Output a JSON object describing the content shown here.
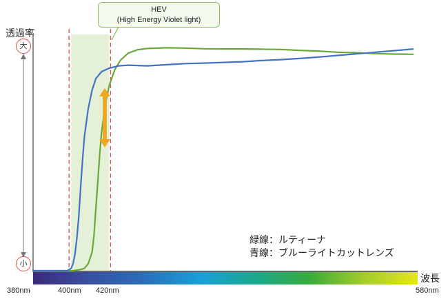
{
  "chart_data": {
    "type": "line",
    "ylabel": "透過率",
    "y_scale_labels": {
      "high": "大",
      "low": "小"
    },
    "xlabel": "波長",
    "xlim": [
      380,
      580
    ],
    "ylim": [
      0,
      100
    ],
    "x_tick_labels": [
      "380nm",
      "400nm",
      "420nm",
      "580nm"
    ],
    "x_ticks": [
      380,
      400,
      420,
      580
    ],
    "hev_band": {
      "range": [
        400,
        420
      ],
      "label_line1": "HEV",
      "label_line2": "(High Energy Violet light)"
    },
    "legend": [
      "緑線：ルティーナ",
      "青線：ブルーライトカットレンズ"
    ],
    "series": [
      {
        "color": "#69a83a",
        "x": [
          380,
          395,
          401,
          405,
          407,
          409,
          411,
          412,
          413,
          414,
          415,
          416,
          418,
          420,
          423,
          426,
          430,
          435,
          440,
          450,
          460,
          470,
          480,
          490,
          500,
          510,
          520,
          530,
          540,
          550,
          560,
          570,
          580
        ],
        "y": [
          0,
          0,
          0,
          0.5,
          1,
          3,
          8,
          15,
          27,
          38,
          50,
          60,
          72,
          80,
          87,
          91,
          94,
          95.5,
          96,
          96.3,
          96.2,
          95.9,
          95.8,
          95.8,
          95.7,
          95.6,
          95.2,
          94.9,
          94.4,
          94.2,
          93.8,
          93.6,
          93.5
        ]
      },
      {
        "color": "#4472c4",
        "x": [
          380,
          395,
          398,
          400,
          401,
          402,
          403,
          404,
          405,
          406,
          407,
          409,
          411,
          413,
          416,
          420,
          425,
          430,
          440,
          450,
          460,
          470,
          480,
          490,
          500,
          510,
          520,
          530,
          540,
          550,
          560,
          570,
          580
        ],
        "y": [
          0,
          0,
          0,
          1,
          3,
          7,
          14,
          23,
          36,
          48,
          58,
          70,
          78,
          83,
          86,
          87.5,
          88.5,
          88.8,
          88.5,
          89,
          89.5,
          89.7,
          90,
          90.3,
          90.8,
          91.2,
          91.7,
          92.3,
          93,
          93.7,
          94.4,
          95.1,
          95.8
        ]
      }
    ],
    "arrow_color": "#f0a820",
    "band_color": "#e4f1d8",
    "dash_color": "#e05050"
  }
}
